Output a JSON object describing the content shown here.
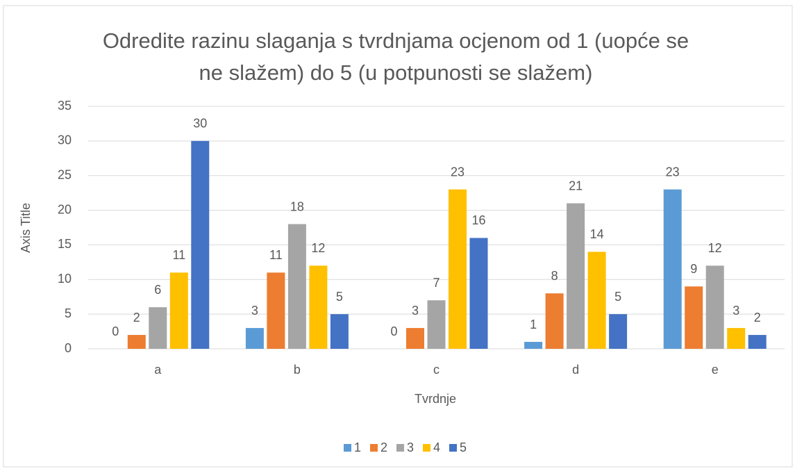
{
  "chart_data": {
    "type": "bar",
    "title": "Odredite razinu slaganja s tvrdnjama ocjenom od 1 (uopće se ne slažem) do 5 (u potpunosti se slažem)",
    "x_label": "Tvrdnje",
    "y_label": "Axis Title",
    "categories": [
      "a",
      "b",
      "c",
      "d",
      "e"
    ],
    "series": [
      {
        "name": "1",
        "color": "#5b9bd5",
        "values": [
          0,
          3,
          0,
          1,
          23
        ]
      },
      {
        "name": "2",
        "color": "#ed7d31",
        "values": [
          2,
          11,
          3,
          8,
          9
        ]
      },
      {
        "name": "3",
        "color": "#a5a5a5",
        "values": [
          6,
          18,
          7,
          21,
          12
        ]
      },
      {
        "name": "4",
        "color": "#ffc000",
        "values": [
          11,
          12,
          23,
          14,
          3
        ]
      },
      {
        "name": "5",
        "color": "#4472c4",
        "values": [
          30,
          5,
          16,
          5,
          2
        ]
      }
    ],
    "ylim": [
      0,
      35
    ],
    "yticks": [
      0,
      5,
      10,
      15,
      20,
      25,
      30,
      35
    ],
    "grid": true,
    "legend": "bottom"
  }
}
